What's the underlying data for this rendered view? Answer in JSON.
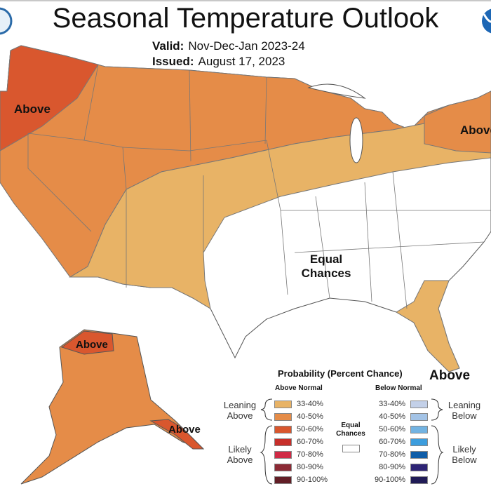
{
  "header": {
    "title": "Seasonal Temperature Outlook",
    "valid_label": "Valid:",
    "valid_value": "Nov-Dec-Jan 2023-24",
    "issued_label": "Issued:",
    "issued_value": "August 17, 2023"
  },
  "logos": {
    "left": "nws-logo",
    "right": "noaa-logo"
  },
  "map_labels": {
    "pacific_nw": "Above",
    "northeast": "Above",
    "alaska_north": "Above",
    "alaska_southeast": "Above",
    "florida": "Above",
    "equal_chances_1": "Equal",
    "equal_chances_2": "Chances"
  },
  "colors": {
    "above_33_40": "#e8b366",
    "above_40_50": "#e58c48",
    "above_50_60": "#d9572e",
    "equal_chances": "#ffffff",
    "state_border": "#777777"
  },
  "legend": {
    "title": "Probability (Percent Chance)",
    "above_header": "Above Normal",
    "below_header": "Below Normal",
    "leaning_above": [
      "Leaning",
      "Above"
    ],
    "likely_above": [
      "Likely",
      "Above"
    ],
    "leaning_below": [
      "Leaning",
      "Below"
    ],
    "likely_below": [
      "Likely",
      "Below"
    ],
    "equal_chances": [
      "Equal",
      "Chances"
    ],
    "above": [
      {
        "range": "33-40%",
        "color": "#e8b366"
      },
      {
        "range": "40-50%",
        "color": "#e58c48"
      },
      {
        "range": "50-60%",
        "color": "#d9572e"
      },
      {
        "range": "60-70%",
        "color": "#c72f2a"
      },
      {
        "range": "70-80%",
        "color": "#d02a45"
      },
      {
        "range": "80-90%",
        "color": "#8c2a35"
      },
      {
        "range": "90-100%",
        "color": "#621e26"
      }
    ],
    "below": [
      {
        "range": "33-40%",
        "color": "#c3d0e8"
      },
      {
        "range": "40-50%",
        "color": "#a3c3e6"
      },
      {
        "range": "50-60%",
        "color": "#72b3e2"
      },
      {
        "range": "60-70%",
        "color": "#3c9ddd"
      },
      {
        "range": "70-80%",
        "color": "#0f5da8"
      },
      {
        "range": "80-90%",
        "color": "#2d2475"
      },
      {
        "range": "90-100%",
        "color": "#201b56"
      }
    ]
  }
}
